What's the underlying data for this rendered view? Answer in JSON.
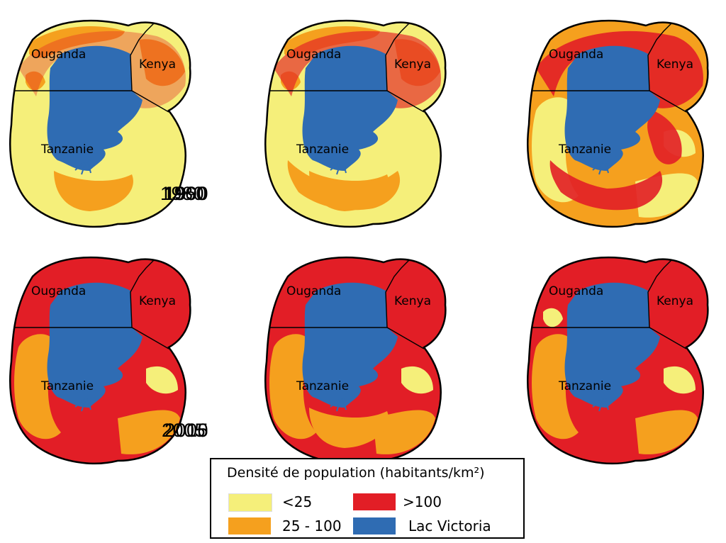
{
  "colors": {
    "low": "#f5ef7a",
    "medium": "#f5a01e",
    "high": "#e21e26",
    "lake": "#2f6cb3",
    "border": "#000000"
  },
  "countries": {
    "uganda": "Ouganda",
    "kenya": "Kenya",
    "tanzania": "Tanzanie"
  },
  "panels": [
    {
      "year": "1960",
      "dominant": "low"
    },
    {
      "year": "1980",
      "dominant": "low"
    },
    {
      "year": "1990",
      "dominant": "medium"
    },
    {
      "year": "2000",
      "dominant": "high"
    },
    {
      "year": "2005",
      "dominant": "high"
    },
    {
      "year": "2015",
      "dominant": "high"
    }
  ],
  "legend": {
    "title": "Densité de population (habitants/km²)",
    "items": [
      {
        "label": "<25",
        "color_key": "low"
      },
      {
        "label": ">100",
        "color_key": "high"
      },
      {
        "label": "25 - 100",
        "color_key": "medium"
      },
      {
        "label": "Lac Victoria",
        "color_key": "lake"
      }
    ]
  }
}
